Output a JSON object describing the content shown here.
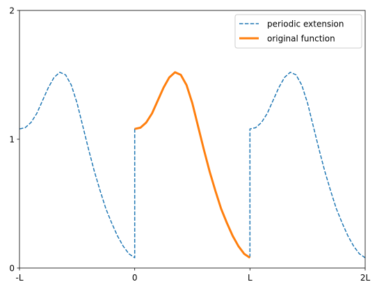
{
  "chart_data": {
    "type": "line",
    "title": "",
    "xlabel": "",
    "ylabel": "",
    "x_ticks": [
      "-L",
      "0",
      "L",
      "2L"
    ],
    "y_ticks": [
      "0",
      "1",
      "2"
    ],
    "xlim": [
      -1,
      2
    ],
    "ylim": [
      0,
      2
    ],
    "grid": false,
    "legend_position": "top-right",
    "series": [
      {
        "name": "periodic extension",
        "style": "dashed",
        "color": "#1f77b4",
        "x": [
          -1.0,
          -0.95,
          -0.9,
          -0.85,
          -0.8,
          -0.75,
          -0.7,
          -0.65,
          -0.6,
          -0.55,
          -0.5,
          -0.45,
          -0.4,
          -0.35,
          -0.3,
          -0.25,
          -0.2,
          -0.15,
          -0.1,
          -0.05,
          0.0,
          0.0,
          0.05,
          0.1,
          0.15,
          0.2,
          0.25,
          0.3,
          0.35,
          0.4,
          0.45,
          0.5,
          0.55,
          0.6,
          0.65,
          0.7,
          0.75,
          0.8,
          0.85,
          0.9,
          0.95,
          1.0,
          1.0,
          1.05,
          1.1,
          1.15,
          1.2,
          1.25,
          1.3,
          1.35,
          1.4,
          1.45,
          1.5,
          1.55,
          1.6,
          1.65,
          1.7,
          1.75,
          1.8,
          1.85,
          1.9,
          1.95,
          2.0
        ],
        "y": [
          1.08,
          1.09,
          1.13,
          1.2,
          1.3,
          1.4,
          1.48,
          1.52,
          1.5,
          1.42,
          1.28,
          1.1,
          0.92,
          0.75,
          0.6,
          0.46,
          0.35,
          0.25,
          0.17,
          0.11,
          0.08,
          1.08,
          1.09,
          1.13,
          1.2,
          1.3,
          1.4,
          1.48,
          1.52,
          1.5,
          1.42,
          1.28,
          1.1,
          0.92,
          0.75,
          0.6,
          0.46,
          0.35,
          0.25,
          0.17,
          0.11,
          0.08,
          1.08,
          1.09,
          1.13,
          1.2,
          1.3,
          1.4,
          1.48,
          1.52,
          1.5,
          1.42,
          1.28,
          1.1,
          0.92,
          0.75,
          0.6,
          0.46,
          0.35,
          0.25,
          0.17,
          0.11,
          0.08
        ]
      },
      {
        "name": "original function",
        "style": "solid",
        "color": "#ff7f0e",
        "x": [
          0.0,
          0.05,
          0.1,
          0.15,
          0.2,
          0.25,
          0.3,
          0.35,
          0.4,
          0.45,
          0.5,
          0.55,
          0.6,
          0.65,
          0.7,
          0.75,
          0.8,
          0.85,
          0.9,
          0.95,
          1.0
        ],
        "y": [
          1.08,
          1.09,
          1.13,
          1.2,
          1.3,
          1.4,
          1.48,
          1.52,
          1.5,
          1.42,
          1.28,
          1.1,
          0.92,
          0.75,
          0.6,
          0.46,
          0.35,
          0.25,
          0.17,
          0.11,
          0.08
        ]
      }
    ]
  }
}
